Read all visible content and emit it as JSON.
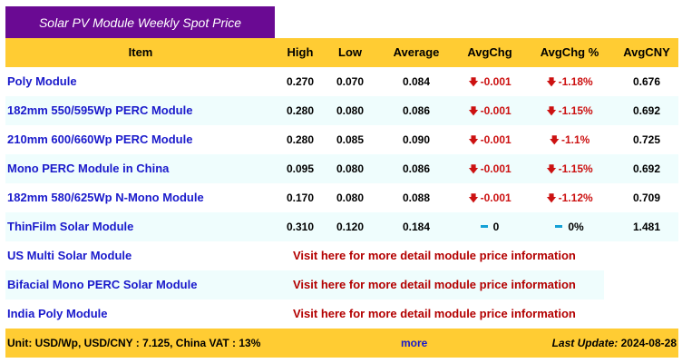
{
  "title": "Solar PV Module Weekly Spot Price",
  "headers": {
    "item": "Item",
    "high": "High",
    "low": "Low",
    "average": "Average",
    "avgchg": "AvgChg",
    "avgchg_pct": "AvgChg %",
    "avgcny": "AvgCNY"
  },
  "rows": [
    {
      "item": "Poly Module",
      "high": "0.270",
      "low": "0.070",
      "average": "0.084",
      "avgchg": "-0.001",
      "avgchg_pct": "-1.18%",
      "avgcny": "0.676",
      "direction": "down"
    },
    {
      "item": "182mm 550/595Wp PERC Module",
      "high": "0.280",
      "low": "0.080",
      "average": "0.086",
      "avgchg": "-0.001",
      "avgchg_pct": "-1.15%",
      "avgcny": "0.692",
      "direction": "down"
    },
    {
      "item": "210mm 600/660Wp PERC Module",
      "high": "0.280",
      "low": "0.085",
      "average": "0.090",
      "avgchg": "-0.001",
      "avgchg_pct": "-1.1%",
      "avgcny": "0.725",
      "direction": "down"
    },
    {
      "item": "Mono PERC Module in China",
      "high": "0.095",
      "low": "0.080",
      "average": "0.086",
      "avgchg": "-0.001",
      "avgchg_pct": "-1.15%",
      "avgcny": "0.692",
      "direction": "down"
    },
    {
      "item": "182mm 580/625Wp N-Mono Module",
      "high": "0.170",
      "low": "0.080",
      "average": "0.088",
      "avgchg": "-0.001",
      "avgchg_pct": "-1.12%",
      "avgcny": "0.709",
      "direction": "down"
    },
    {
      "item": "ThinFilm Solar Module",
      "high": "0.310",
      "low": "0.120",
      "average": "0.184",
      "avgchg": "0",
      "avgchg_pct": "0%",
      "avgcny": "1.481",
      "direction": "flat"
    }
  ],
  "link_rows": [
    {
      "item": "US Multi Solar Module",
      "link": "Visit here for more detail module price information"
    },
    {
      "item": "Bifacial Mono PERC Solar Module",
      "link": "Visit here for more detail module price information"
    },
    {
      "item": "India Poly Module",
      "link": "Visit here for more detail module price information"
    }
  ],
  "footer": {
    "unit": "Unit: USD/Wp, USD/CNY : 7.125, China VAT : 13%",
    "more": "more",
    "last_update_label": "Last Update:",
    "last_update_value": "2024-08-28"
  },
  "icons": {
    "down": "down-arrow-icon",
    "flat": "flat-dash-icon"
  },
  "colors": {
    "title_bg": "#6a0a93",
    "header_bg": "#ffcc33",
    "alt_row_bg": "#effdfd",
    "item_link": "#1a1acb",
    "negative": "#cc1111",
    "visit_link": "#b30000",
    "flat_icon": "#14a1d6"
  }
}
